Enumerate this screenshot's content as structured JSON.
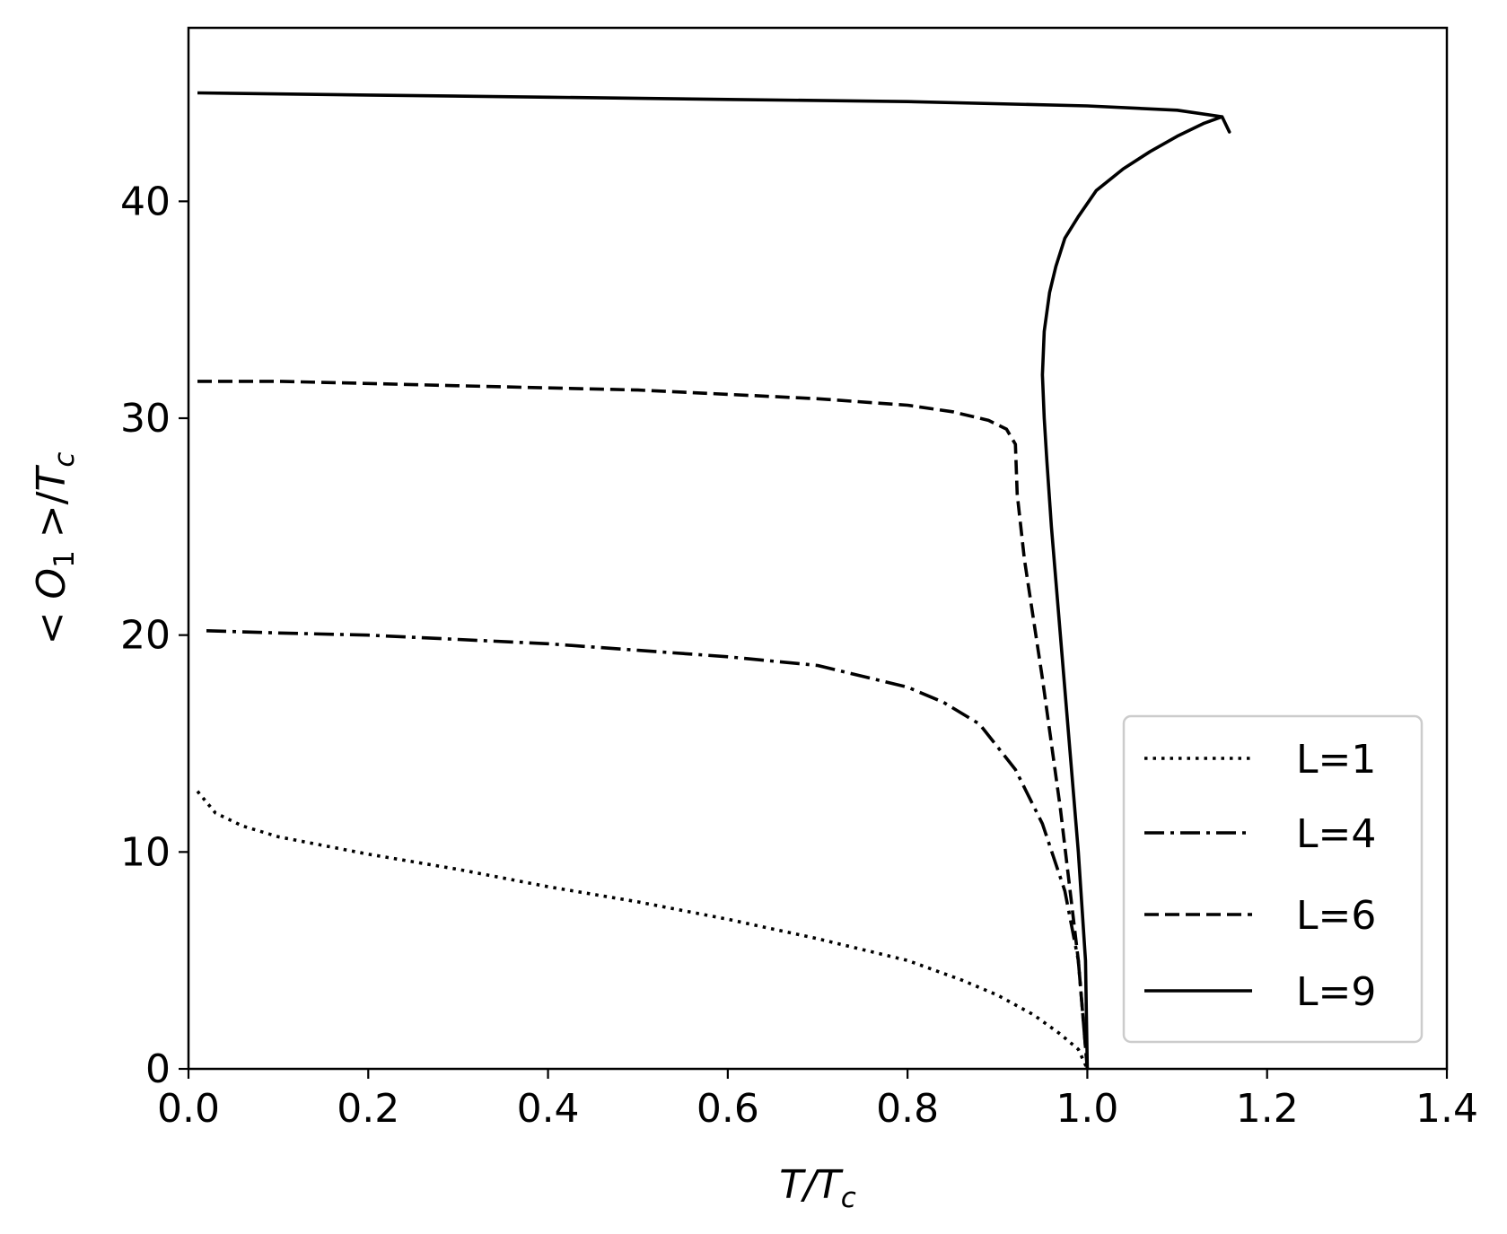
{
  "chart_data": {
    "type": "line",
    "title": "",
    "xlabel_italic": "T/T",
    "xlabel_sub": "c",
    "ylabel_parts": {
      "open": "< ",
      "o": "O",
      "o_sub": "1",
      "close": " >/",
      "t": "T",
      "t_sub": "c"
    },
    "xlim": [
      0.0,
      1.4
    ],
    "ylim": [
      0,
      48
    ],
    "xticks": [
      "0.0",
      "0.2",
      "0.4",
      "0.6",
      "0.8",
      "1.0",
      "1.2",
      "1.4"
    ],
    "xtick_values": [
      0.0,
      0.2,
      0.4,
      0.6,
      0.8,
      1.0,
      1.2,
      1.4
    ],
    "yticks": [
      "0",
      "10",
      "20",
      "30",
      "40"
    ],
    "ytick_values": [
      0,
      10,
      20,
      30,
      40
    ],
    "grid": false,
    "legend_position": "bottom-right",
    "color": "#000000",
    "series": [
      {
        "name": "L=1",
        "style": "dotted",
        "x": [
          0.01,
          0.03,
          0.06,
          0.1,
          0.15,
          0.2,
          0.3,
          0.4,
          0.5,
          0.6,
          0.7,
          0.8,
          0.86,
          0.9,
          0.94,
          0.97,
          0.99,
          1.0
        ],
        "y": [
          12.8,
          11.8,
          11.2,
          10.7,
          10.3,
          9.9,
          9.2,
          8.4,
          7.7,
          6.9,
          6.0,
          5.0,
          4.1,
          3.4,
          2.5,
          1.6,
          0.9,
          0.0
        ]
      },
      {
        "name": "L=4",
        "style": "dashdot",
        "x": [
          0.02,
          0.1,
          0.2,
          0.3,
          0.4,
          0.5,
          0.6,
          0.7,
          0.8,
          0.84,
          0.88,
          0.92,
          0.95,
          0.975,
          0.99,
          1.0
        ],
        "y": [
          20.2,
          20.1,
          20.0,
          19.8,
          19.6,
          19.3,
          19.0,
          18.6,
          17.6,
          16.9,
          15.9,
          13.8,
          11.3,
          8.2,
          5.0,
          0.0
        ]
      },
      {
        "name": "L=6",
        "style": "dashed",
        "x": [
          0.01,
          0.1,
          0.2,
          0.3,
          0.4,
          0.5,
          0.6,
          0.7,
          0.8,
          0.85,
          0.89,
          0.91,
          0.92,
          0.922,
          0.93,
          0.95,
          0.97,
          0.99,
          1.0
        ],
        "y": [
          31.7,
          31.7,
          31.6,
          31.5,
          31.4,
          31.3,
          31.1,
          30.9,
          30.6,
          30.3,
          29.9,
          29.5,
          28.8,
          26.5,
          23.5,
          18.0,
          12.0,
          5.0,
          0.0
        ]
      },
      {
        "name": "L=9",
        "style": "solid",
        "x": [
          1.0,
          0.998,
          0.99,
          0.98,
          0.97,
          0.96,
          0.955,
          0.952,
          0.95,
          0.952,
          0.958,
          0.965,
          0.975,
          0.99,
          1.01,
          1.04,
          1.07,
          1.1,
          1.13,
          1.15,
          1.158,
          1.15,
          1.1,
          1.0,
          0.8,
          0.6,
          0.4,
          0.2,
          0.01
        ],
        "y": [
          0.0,
          5.0,
          10.0,
          15.0,
          20.0,
          25.0,
          28.0,
          30.0,
          32.0,
          34.0,
          35.8,
          37.0,
          38.3,
          39.3,
          40.5,
          41.5,
          42.3,
          43.0,
          43.6,
          43.9,
          43.2,
          43.9,
          44.2,
          44.4,
          44.6,
          44.7,
          44.8,
          44.9,
          45.0
        ]
      }
    ]
  }
}
